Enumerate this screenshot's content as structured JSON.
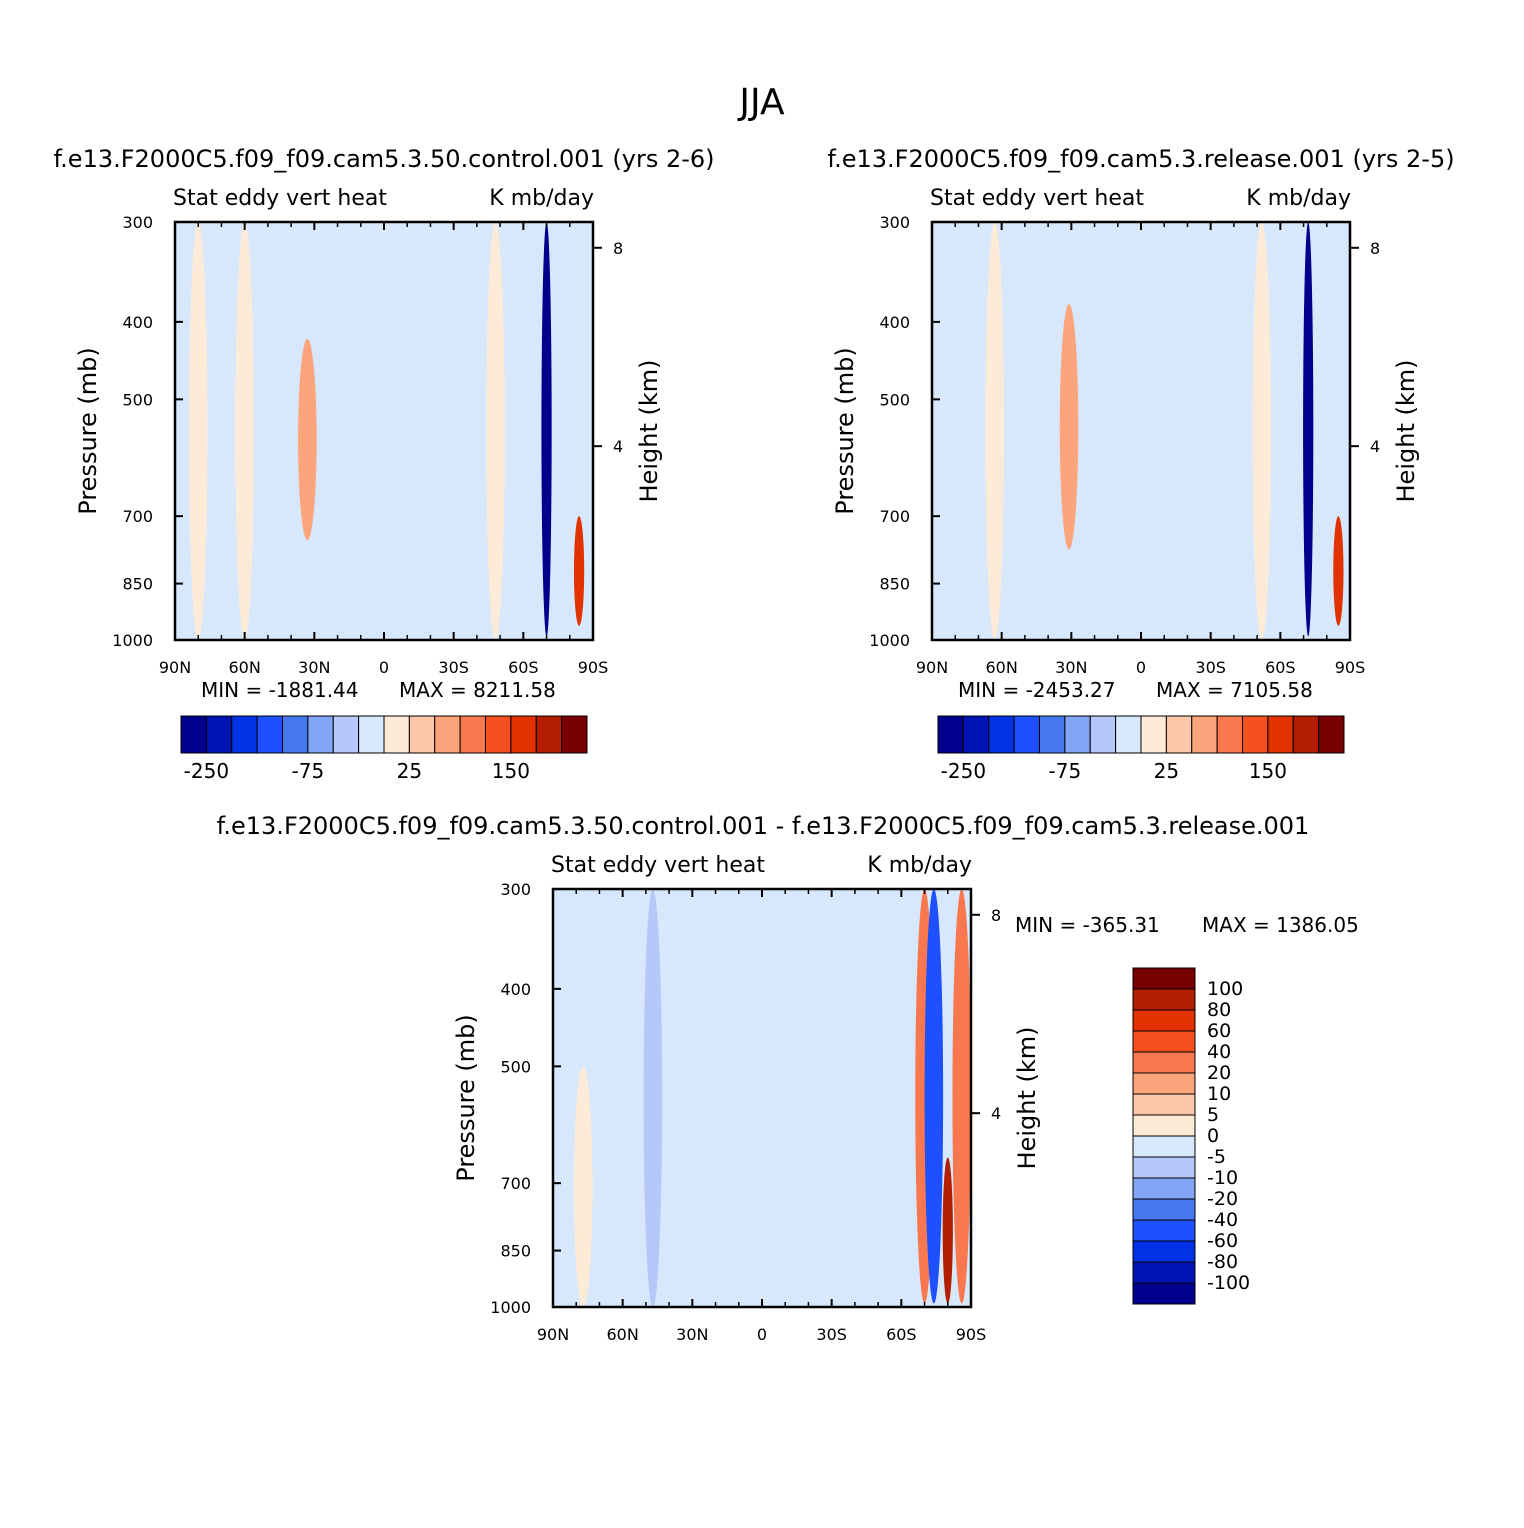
{
  "figure": {
    "title": "JJA"
  },
  "chart_data": [
    {
      "type": "heatmap",
      "case": "f.e13.F2000C5.f09_f09.cam5.3.50.control.001",
      "title": "f.e13.F2000C5.f09_f09.cam5.3.50.control.001 (yrs 2-6)",
      "subtitle_left": "Stat eddy vert heat",
      "subtitle_right": "K mb/day",
      "ylabel": "Pressure (mb)",
      "ylabel_right": "Height (km)",
      "x_ticks": [
        "90N",
        "60N",
        "30N",
        "0",
        "30S",
        "60S",
        "90S"
      ],
      "y_ticks": [
        "300",
        "400",
        "500",
        "700",
        "850",
        "1000"
      ],
      "y_right_ticks": [
        "8",
        "4"
      ],
      "min_text": "MIN = -1881.44",
      "max_text": "MAX = 8211.58",
      "min": -1881.44,
      "max": 8211.58,
      "colorbar_labels": [
        "-250",
        "-75",
        "25",
        "150"
      ],
      "colorbar_orientation": "horizontal",
      "features": [
        {
          "lat": 33,
          "p_min": 420,
          "p_max": 750,
          "value": 60
        },
        {
          "lat": 80,
          "p_min": 300,
          "p_max": 1000,
          "value": 0.5
        },
        {
          "lat": 60,
          "p_min": 300,
          "p_max": 1000,
          "value": 2
        },
        {
          "lat": -48,
          "p_min": 300,
          "p_max": 1000,
          "value": 2
        },
        {
          "lat": -70,
          "p_min": 300,
          "p_max": 990,
          "value": -250
        },
        {
          "lat": -84,
          "p_min": 700,
          "p_max": 960,
          "value": 200
        }
      ]
    },
    {
      "type": "heatmap",
      "case": "f.e13.F2000C5.f09_f09.cam5.3.release.001",
      "title": "f.e13.F2000C5.f09_f09.cam5.3.release.001 (yrs 2-5)",
      "subtitle_left": "Stat eddy vert heat",
      "subtitle_right": "K mb/day",
      "ylabel": "Pressure (mb)",
      "ylabel_right": "Height (km)",
      "x_ticks": [
        "90N",
        "60N",
        "30N",
        "0",
        "30S",
        "60S",
        "90S"
      ],
      "y_ticks": [
        "300",
        "400",
        "500",
        "700",
        "850",
        "1000"
      ],
      "y_right_ticks": [
        "8",
        "4"
      ],
      "min_text": "MIN = -2453.27",
      "max_text": "MAX = 7105.58",
      "min": -2453.27,
      "max": 7105.58,
      "colorbar_labels": [
        "-250",
        "-75",
        "25",
        "150"
      ],
      "colorbar_orientation": "horizontal",
      "features": [
        {
          "lat": 31,
          "p_min": 380,
          "p_max": 770,
          "value": 60
        },
        {
          "lat": 63,
          "p_min": 300,
          "p_max": 1000,
          "value": 2
        },
        {
          "lat": -52,
          "p_min": 300,
          "p_max": 1000,
          "value": 2
        },
        {
          "lat": -72,
          "p_min": 300,
          "p_max": 990,
          "value": -250
        },
        {
          "lat": -85,
          "p_min": 700,
          "p_max": 960,
          "value": 200
        }
      ]
    },
    {
      "type": "heatmap",
      "title": "f.e13.F2000C5.f09_f09.cam5.3.50.control.001 - f.e13.F2000C5.f09_f09.cam5.3.release.001",
      "subtitle_left": "Stat eddy vert heat",
      "subtitle_right": "K mb/day",
      "ylabel": "Pressure (mb)",
      "ylabel_right": "Height (km)",
      "x_ticks": [
        "90N",
        "60N",
        "30N",
        "0",
        "30S",
        "60S",
        "90S"
      ],
      "y_ticks": [
        "300",
        "400",
        "500",
        "700",
        "850",
        "1000"
      ],
      "y_right_ticks": [
        "8",
        "4"
      ],
      "min_text": "MIN = -365.31",
      "max_text": "MAX = 1386.05",
      "min": -365.31,
      "max": 1386.05,
      "colorbar_labels": [
        "100",
        "80",
        "60",
        "40",
        "20",
        "10",
        "5",
        "0",
        "-5",
        "-10",
        "-20",
        "-40",
        "-60",
        "-80",
        "-100"
      ],
      "colorbar_orientation": "vertical",
      "features": [
        {
          "lat": -70,
          "p_min": 300,
          "p_max": 990,
          "value": 40
        },
        {
          "lat": -74,
          "p_min": 300,
          "p_max": 990,
          "value": -40
        },
        {
          "lat": -80,
          "p_min": 650,
          "p_max": 990,
          "value": 100
        },
        {
          "lat": -86,
          "p_min": 300,
          "p_max": 990,
          "value": 40
        },
        {
          "lat": 77,
          "p_min": 500,
          "p_max": 1000,
          "value": 5
        },
        {
          "lat": 47,
          "p_min": 300,
          "p_max": 1000,
          "value": -5
        }
      ]
    }
  ],
  "colors": {
    "main_scale": [
      "#00008c",
      "#0014b4",
      "#0032e6",
      "#1e50ff",
      "#4678f0",
      "#82a5f5",
      "#b4c8fa",
      "#d7e8fc",
      "#feebd7",
      "#fdc8aa",
      "#fca57d",
      "#fa7850",
      "#f5501e",
      "#e13200",
      "#b41e00",
      "#780000"
    ],
    "diff_scale": [
      "#00008c",
      "#0014b4",
      "#0032e6",
      "#1e50ff",
      "#4678f0",
      "#82a5f5",
      "#b4c8fa",
      "#d7e8fc",
      "#feebd7",
      "#fdc8aa",
      "#fca57d",
      "#fa7850",
      "#f5501e",
      "#e13200",
      "#b41e00",
      "#780000"
    ]
  }
}
